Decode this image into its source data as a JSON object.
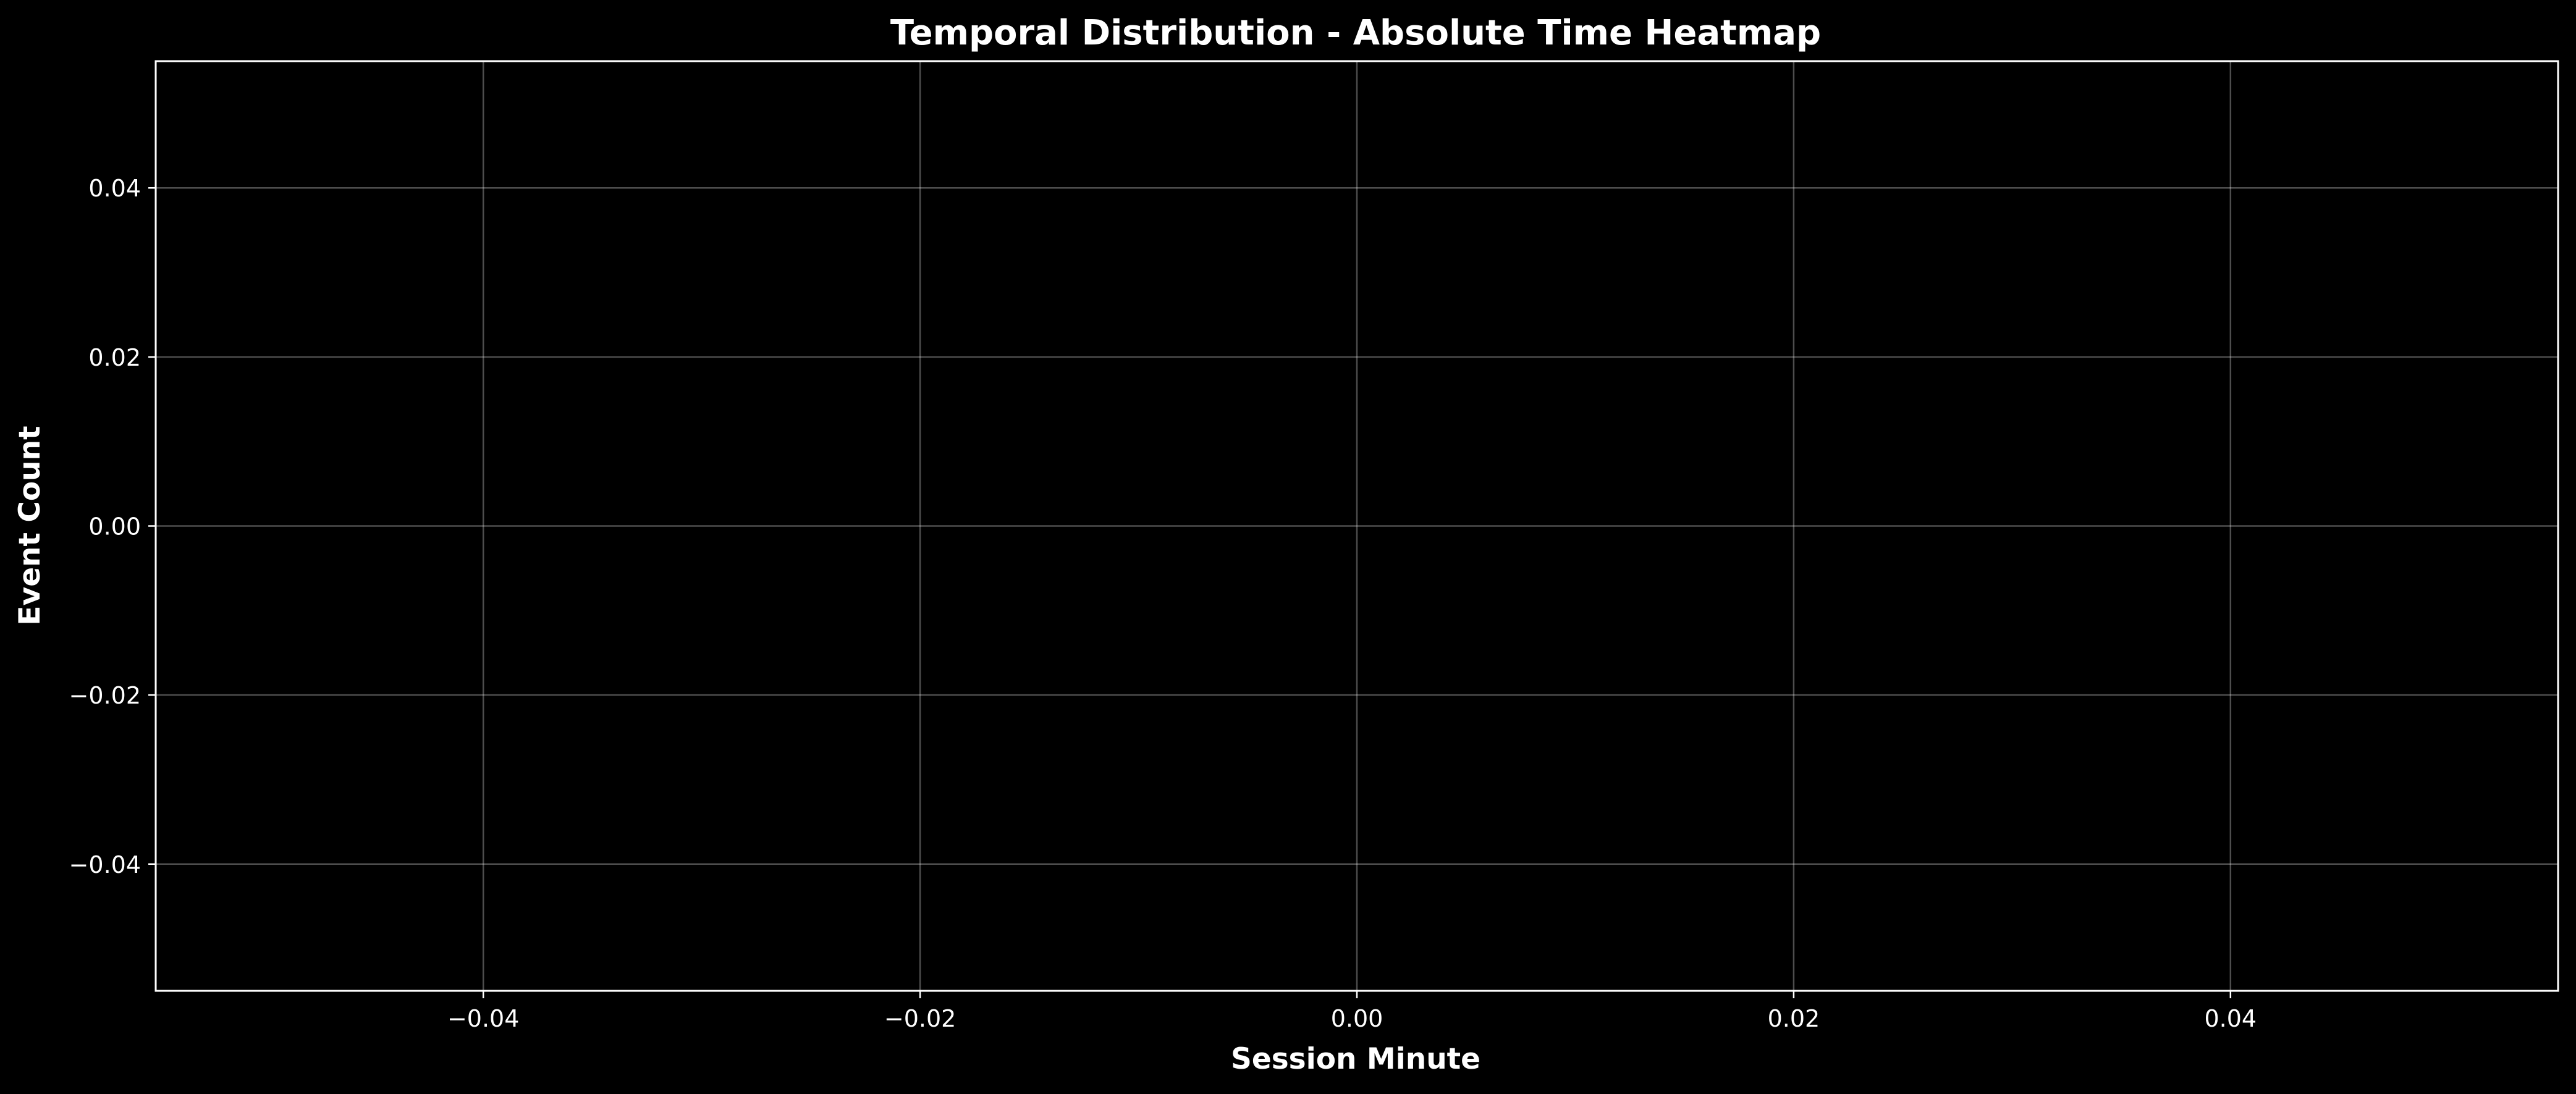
{
  "chart_data": {
    "type": "heatmap",
    "title": "Temporal Distribution - Absolute Time Heatmap",
    "xlabel": "Session Minute",
    "ylabel": "Event Count",
    "xlim": [
      -0.055,
      0.055
    ],
    "ylim": [
      -0.055,
      0.055
    ],
    "x_ticks": [
      -0.04,
      -0.02,
      0.0,
      0.02,
      0.04
    ],
    "y_ticks": [
      -0.04,
      -0.02,
      0.0,
      0.02,
      0.04
    ],
    "x_tick_labels": [
      "−0.04",
      "−0.02",
      "0.00",
      "0.02",
      "0.04"
    ],
    "y_tick_labels": [
      "−0.04",
      "−0.02",
      "0.00",
      "0.02",
      "0.04"
    ],
    "grid": true,
    "series": [],
    "colors": {
      "background": "#000000",
      "foreground": "#ffffff"
    }
  }
}
